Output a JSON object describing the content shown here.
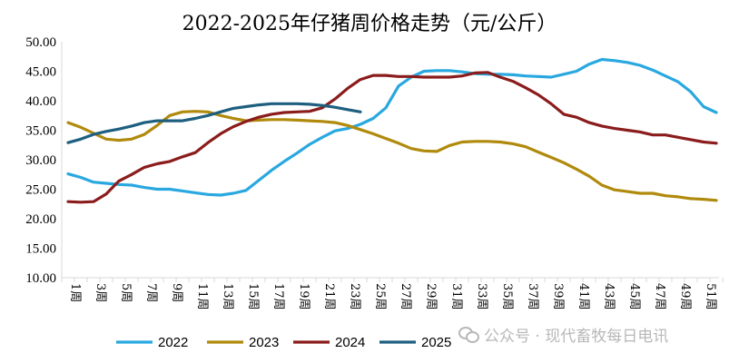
{
  "chart_data": {
    "type": "line",
    "title": "2022-2025年仔猪周价格走势（元/公斤）",
    "ylim": [
      10,
      50
    ],
    "yticks": [
      "10.00",
      "15.00",
      "20.00",
      "25.00",
      "30.00",
      "35.00",
      "40.00",
      "45.00",
      "50.00"
    ],
    "x_range": [
      1,
      53
    ],
    "xtick_labels": [
      "1周",
      "3周",
      "5周",
      "7周",
      "9周",
      "11周",
      "13周",
      "15周",
      "17周",
      "19周",
      "21周",
      "23周",
      "25周",
      "27周",
      "29周",
      "31周",
      "33周",
      "35周",
      "37周",
      "39周",
      "41周",
      "43周",
      "45周",
      "47周",
      "49周",
      "51周"
    ],
    "grid": false,
    "legend_position": "bottom",
    "series": [
      {
        "name": "2022",
        "color": "#29a8e0",
        "x": [
          1,
          2,
          3,
          4,
          5,
          6,
          7,
          8,
          9,
          10,
          11,
          12,
          13,
          14,
          15,
          16,
          17,
          18,
          19,
          20,
          21,
          22,
          23,
          24,
          25,
          26,
          27,
          28,
          29,
          30,
          31,
          32,
          33,
          34,
          35,
          36,
          37,
          38,
          39,
          40,
          41,
          42,
          43,
          44,
          45,
          46,
          47,
          48,
          49,
          50,
          51,
          52
        ],
        "values": [
          27.6,
          27.0,
          26.2,
          26.0,
          25.8,
          25.7,
          25.3,
          25.0,
          25.0,
          24.7,
          24.4,
          24.1,
          24.0,
          24.3,
          24.8,
          26.5,
          28.2,
          29.7,
          31.1,
          32.6,
          33.8,
          34.9,
          35.3,
          36.0,
          37.0,
          38.8,
          42.5,
          44.0,
          45.0,
          45.1,
          45.1,
          44.9,
          44.6,
          44.5,
          44.5,
          44.4,
          44.2,
          44.1,
          44.0,
          44.5,
          45.0,
          46.2,
          47.0,
          46.8,
          46.5,
          46.0,
          45.2,
          44.2,
          43.2,
          41.5,
          39.0,
          38.0
        ]
      },
      {
        "name": "2023",
        "color": "#b08a0c",
        "x": [
          1,
          2,
          3,
          4,
          5,
          6,
          7,
          8,
          9,
          10,
          11,
          12,
          13,
          14,
          15,
          16,
          17,
          18,
          19,
          20,
          21,
          22,
          23,
          24,
          25,
          26,
          27,
          28,
          29,
          30,
          31,
          32,
          33,
          34,
          35,
          36,
          37,
          38,
          39,
          40,
          41,
          42,
          43,
          44,
          45,
          46,
          47,
          48,
          49,
          50,
          51,
          52
        ],
        "values": [
          36.3,
          35.5,
          34.5,
          33.5,
          33.3,
          33.5,
          34.3,
          35.8,
          37.5,
          38.1,
          38.2,
          38.1,
          37.5,
          37.0,
          36.6,
          36.7,
          36.8,
          36.8,
          36.7,
          36.6,
          36.5,
          36.3,
          35.8,
          35.1,
          34.4,
          33.6,
          32.8,
          31.9,
          31.5,
          31.4,
          32.4,
          33.0,
          33.1,
          33.1,
          33.0,
          32.7,
          32.2,
          31.3,
          30.4,
          29.5,
          28.4,
          27.2,
          25.7,
          24.9,
          24.6,
          24.3,
          24.3,
          23.9,
          23.7,
          23.4,
          23.3,
          23.1
        ]
      },
      {
        "name": "2024",
        "color": "#8b1c1c",
        "x": [
          1,
          2,
          3,
          4,
          5,
          6,
          7,
          8,
          9,
          10,
          11,
          12,
          13,
          14,
          15,
          16,
          17,
          18,
          19,
          20,
          21,
          22,
          23,
          24,
          25,
          26,
          27,
          28,
          29,
          30,
          31,
          32,
          33,
          34,
          35,
          36,
          37,
          38,
          39,
          40,
          41,
          42,
          43,
          44,
          45,
          46,
          47,
          48,
          49,
          50,
          51,
          52
        ],
        "values": [
          22.9,
          22.8,
          22.9,
          24.2,
          26.4,
          27.5,
          28.7,
          29.3,
          29.7,
          30.5,
          31.2,
          32.9,
          34.4,
          35.6,
          36.5,
          37.2,
          37.7,
          38.0,
          38.1,
          38.2,
          38.8,
          40.3,
          42.1,
          43.6,
          44.3,
          44.3,
          44.1,
          44.1,
          44.0,
          44.0,
          44.0,
          44.2,
          44.7,
          44.8,
          44.0,
          43.3,
          42.2,
          41.0,
          39.5,
          37.7,
          37.2,
          36.3,
          35.7,
          35.3,
          35.0,
          34.7,
          34.2,
          34.2,
          33.8,
          33.4,
          33.0,
          32.8
        ]
      },
      {
        "name": "2025",
        "color": "#1e5f80",
        "x": [
          1,
          2,
          3,
          4,
          5,
          6,
          7,
          8,
          9,
          10,
          11,
          12,
          13,
          14,
          15,
          16,
          17,
          18,
          19,
          20,
          21,
          22,
          23,
          24
        ],
        "values": [
          32.9,
          33.5,
          34.3,
          34.8,
          35.2,
          35.7,
          36.3,
          36.6,
          36.6,
          36.6,
          37.0,
          37.5,
          38.1,
          38.7,
          39.0,
          39.3,
          39.5,
          39.5,
          39.5,
          39.4,
          39.2,
          38.9,
          38.5,
          38.1
        ]
      }
    ]
  },
  "watermark": {
    "icon": "wechat-icon",
    "text": "公众号 · 现代畜牧每日电讯"
  }
}
